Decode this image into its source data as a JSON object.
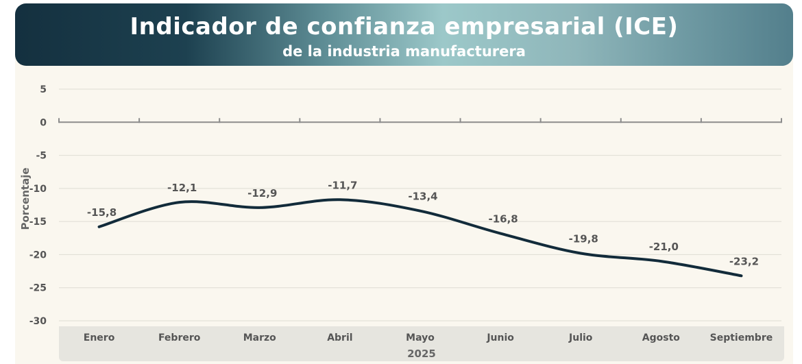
{
  "chart_data": {
    "type": "line",
    "title": "Indicador de confianza empresarial (ICE)",
    "subtitle": "de la industria manufacturera",
    "xlabel": "2025",
    "ylabel": "Porcentaje",
    "categories": [
      "Enero",
      "Febrero",
      "Marzo",
      "Abril",
      "Mayo",
      "Junio",
      "Julio",
      "Agosto",
      "Septiembre"
    ],
    "series": [
      {
        "name": "ICE",
        "values": [
          -15.8,
          -12.1,
          -12.9,
          -11.7,
          -13.4,
          -16.8,
          -19.8,
          -21.0,
          -23.2
        ],
        "labels": [
          "-15,8",
          "-12,1",
          "-12,9",
          "-11,7",
          "-13,4",
          "-16,8",
          "-19,8",
          "-21,0",
          "-23,2"
        ]
      }
    ],
    "yticks": [
      "5",
      "0",
      "-5",
      "-10",
      "-15",
      "-20",
      "-25",
      "-30"
    ],
    "ylim": [
      -30,
      5
    ],
    "grid": true,
    "colors": {
      "line": "#122b3a",
      "grid": "#dedcd3",
      "axis": "#8c8c8c"
    }
  }
}
